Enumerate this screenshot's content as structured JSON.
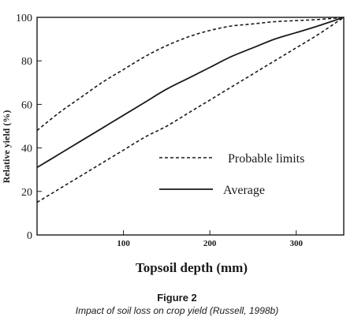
{
  "chart_data": {
    "type": "line",
    "xlabel": "Topsoil depth (mm)",
    "ylabel": "Relative yield (%)",
    "xlim": [
      0,
      355
    ],
    "ylim": [
      0,
      100
    ],
    "x_ticks": [
      100,
      200,
      300
    ],
    "y_ticks": [
      0,
      20,
      40,
      60,
      80,
      100
    ],
    "grid": false,
    "legend_position": "center-right",
    "series": [
      {
        "name": "Probable limits",
        "style": "dashed",
        "x": [
          0,
          25,
          50,
          75,
          100,
          125,
          150,
          175,
          200,
          225,
          250,
          275,
          300,
          325,
          355
        ],
        "y": [
          48,
          56,
          63,
          70,
          76,
          82,
          87,
          91,
          94,
          96,
          97,
          98,
          98.5,
          99,
          100
        ]
      },
      {
        "name": "Average",
        "style": "solid",
        "x": [
          0,
          25,
          50,
          75,
          100,
          125,
          150,
          175,
          200,
          225,
          250,
          275,
          300,
          325,
          355
        ],
        "y": [
          31,
          37,
          43,
          49,
          55,
          61,
          67,
          72,
          77,
          82,
          86,
          90,
          93,
          96,
          100
        ]
      },
      {
        "name": "Probable limits",
        "style": "dashed",
        "x": [
          0,
          25,
          50,
          75,
          100,
          125,
          150,
          175,
          200,
          225,
          250,
          275,
          300,
          325,
          355
        ],
        "y": [
          15,
          21,
          27,
          33,
          39,
          45,
          50,
          56,
          62,
          68,
          74,
          80,
          86,
          92,
          100
        ]
      }
    ],
    "legend": [
      {
        "label": "Probable limits",
        "style": "dashed"
      },
      {
        "label": "Average",
        "style": "solid"
      }
    ]
  },
  "caption": {
    "title": "Figure 2",
    "subtitle": "Impact of soil loss on crop yield (Russell, 1998b)"
  },
  "colors": {
    "ink": "#1a1a1a",
    "background": "#ffffff"
  }
}
